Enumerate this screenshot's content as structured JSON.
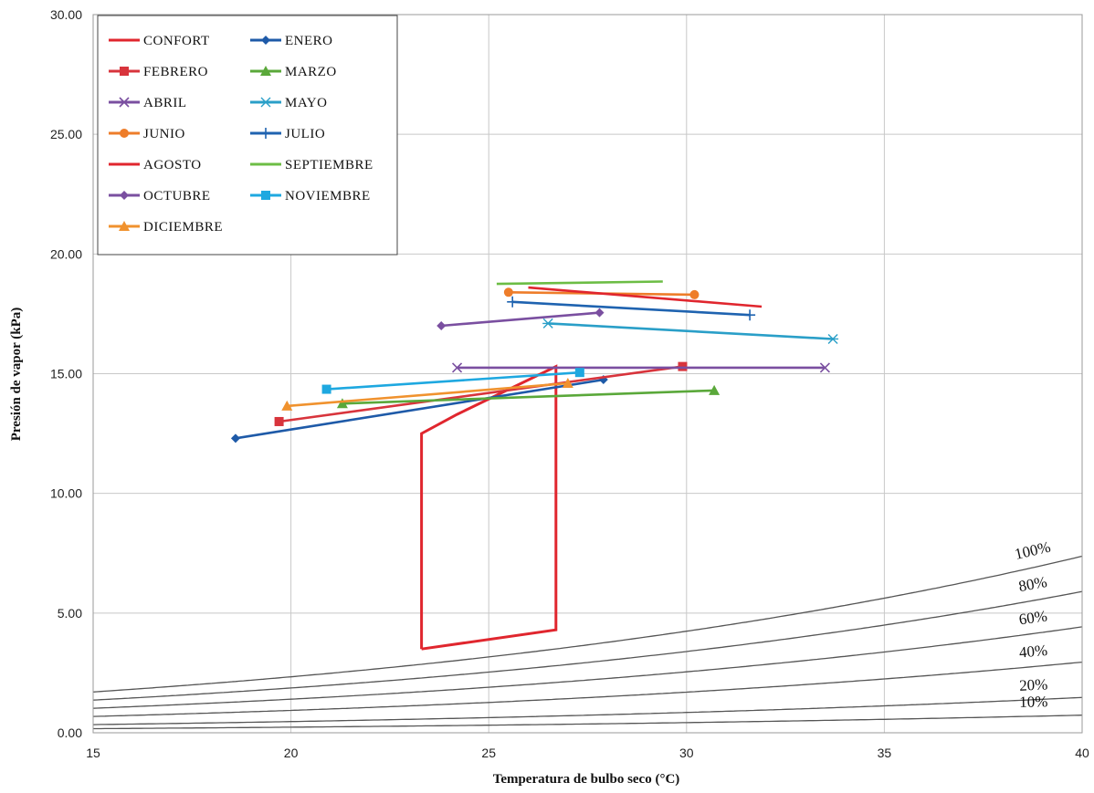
{
  "chart_data": {
    "type": "line",
    "xlabel": "Temperatura  de bulbo  seco (°C)",
    "ylabel": "Presión de vapor  (kPa)",
    "xlim": [
      15,
      40
    ],
    "ylim": [
      0,
      30
    ],
    "x_ticks": [
      "15",
      "20",
      "25",
      "30",
      "35",
      "40"
    ],
    "y_ticks": [
      "0.00",
      "5.00",
      "10.00",
      "15.00",
      "20.00",
      "25.00",
      "30.00"
    ],
    "grid": true,
    "legend_position": "top-left",
    "rh_curves": [
      {
        "label": "100%",
        "rh": 1.0
      },
      {
        "label": "80%",
        "rh": 0.8
      },
      {
        "label": "60%",
        "rh": 0.6
      },
      {
        "label": "40%",
        "rh": 0.4
      },
      {
        "label": "20%",
        "rh": 0.2
      },
      {
        "label": "10%",
        "rh": 0.1
      }
    ],
    "series": [
      {
        "name": "CONFORT",
        "color": "#e0262e",
        "marker": "none",
        "points": [
          [
            23.3,
            3.5
          ],
          [
            26.7,
            4.3
          ],
          [
            26.7,
            15.3
          ],
          [
            24.2,
            13.3
          ],
          [
            23.3,
            12.5
          ],
          [
            23.3,
            3.5
          ]
        ]
      },
      {
        "name": "ENERO",
        "color": "#1e5aa8",
        "marker": "diamond",
        "points": [
          [
            18.6,
            12.3
          ],
          [
            27.9,
            14.75
          ]
        ]
      },
      {
        "name": "FEBRERO",
        "color": "#d8343c",
        "marker": "square",
        "points": [
          [
            19.7,
            13.0
          ],
          [
            29.9,
            15.3
          ]
        ]
      },
      {
        "name": "MARZO",
        "color": "#5aa83a",
        "marker": "triangle",
        "points": [
          [
            21.3,
            13.75
          ],
          [
            30.7,
            14.3
          ]
        ]
      },
      {
        "name": "ABRIL",
        "color": "#7a4fa0",
        "marker": "x",
        "points": [
          [
            24.2,
            15.25
          ],
          [
            33.5,
            15.25
          ]
        ]
      },
      {
        "name": "MAYO",
        "color": "#2a9fc8",
        "marker": "star",
        "points": [
          [
            26.5,
            17.1
          ],
          [
            33.7,
            16.45
          ]
        ]
      },
      {
        "name": "JUNIO",
        "color": "#ee7d2a",
        "marker": "circle",
        "points": [
          [
            25.5,
            18.4
          ],
          [
            30.2,
            18.3
          ]
        ]
      },
      {
        "name": "JULIO",
        "color": "#1f63b0",
        "marker": "plus",
        "points": [
          [
            25.6,
            18.0
          ],
          [
            31.6,
            17.45
          ]
        ]
      },
      {
        "name": "AGOSTO",
        "color": "#e0262e",
        "marker": "none",
        "points": [
          [
            26.0,
            18.6
          ],
          [
            31.9,
            17.8
          ]
        ]
      },
      {
        "name": "SEPTIEMBRE",
        "color": "#6cbd45",
        "marker": "none",
        "points": [
          [
            25.2,
            18.75
          ],
          [
            29.4,
            18.85
          ]
        ]
      },
      {
        "name": "OCTUBRE",
        "color": "#7a4fa0",
        "marker": "diamond",
        "points": [
          [
            23.8,
            17.0
          ],
          [
            27.8,
            17.55
          ]
        ]
      },
      {
        "name": "NOVIEMBRE",
        "color": "#1ea8e0",
        "marker": "square",
        "points": [
          [
            20.9,
            14.35
          ],
          [
            27.3,
            15.05
          ]
        ]
      },
      {
        "name": "DICIEMBRE",
        "color": "#f0922e",
        "marker": "triangle",
        "points": [
          [
            19.9,
            13.65
          ],
          [
            27.0,
            14.6
          ]
        ]
      }
    ]
  }
}
